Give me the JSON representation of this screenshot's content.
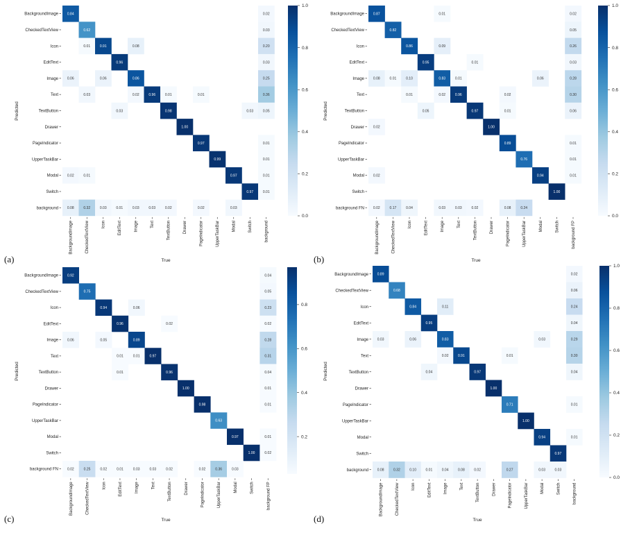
{
  "figure": {
    "colormap": [
      "#f7fbff",
      "#deebf7",
      "#c6dbef",
      "#9ecae1",
      "#6baed6",
      "#4292c6",
      "#2171b5",
      "#08519c",
      "#08306b"
    ],
    "axis_label_x": "True",
    "axis_label_y": "Predicted"
  },
  "chart_data": [
    {
      "type": "heatmap",
      "panel_label": "(a)",
      "xlabel": "True",
      "ylabel": "Predicted",
      "x_categories": [
        "BackgroundImage",
        "CheckedTextView",
        "Icon",
        "EditText",
        "Image",
        "Text",
        "TextButton",
        "Drawer",
        "PageIndicator",
        "UpperTaskBar",
        "Modal",
        "Switch",
        "background"
      ],
      "y_categories": [
        "BackgroundImage",
        "CheckedTextView",
        "Icon",
        "EditText",
        "Image",
        "Text",
        "TextButton",
        "Drawer",
        "PageIndicator",
        "UpperTaskBar",
        "Modal",
        "Switch",
        "background"
      ],
      "values": [
        [
          0.84,
          null,
          null,
          null,
          null,
          null,
          null,
          null,
          null,
          null,
          null,
          null,
          0.02
        ],
        [
          null,
          0.62,
          null,
          null,
          null,
          null,
          null,
          null,
          null,
          null,
          null,
          null,
          0.03
        ],
        [
          null,
          0.01,
          0.91,
          null,
          0.08,
          null,
          null,
          null,
          null,
          null,
          null,
          null,
          0.2
        ],
        [
          null,
          null,
          null,
          0.96,
          null,
          null,
          null,
          null,
          null,
          null,
          null,
          null,
          0.03
        ],
        [
          0.06,
          null,
          0.06,
          null,
          0.86,
          null,
          null,
          null,
          null,
          null,
          null,
          null,
          0.25
        ],
        [
          null,
          0.03,
          null,
          null,
          0.02,
          0.96,
          0.01,
          null,
          0.01,
          null,
          null,
          null,
          0.36
        ],
        [
          null,
          null,
          null,
          0.03,
          null,
          null,
          0.98,
          null,
          null,
          null,
          null,
          0.03,
          0.05
        ],
        [
          null,
          null,
          null,
          null,
          null,
          null,
          null,
          1.0,
          null,
          null,
          null,
          null,
          null
        ],
        [
          null,
          null,
          null,
          null,
          null,
          null,
          null,
          null,
          0.97,
          null,
          null,
          null,
          0.01
        ],
        [
          null,
          null,
          null,
          null,
          null,
          null,
          null,
          null,
          null,
          0.99,
          null,
          null,
          0.01
        ],
        [
          0.02,
          0.01,
          null,
          null,
          null,
          null,
          null,
          null,
          null,
          null,
          0.97,
          null,
          0.01
        ],
        [
          null,
          null,
          null,
          null,
          null,
          null,
          null,
          null,
          null,
          null,
          null,
          0.97,
          0.01
        ],
        [
          0.08,
          0.32,
          0.03,
          0.01,
          0.03,
          0.03,
          0.02,
          null,
          0.02,
          null,
          0.03,
          null,
          null
        ]
      ],
      "colorbar": {
        "range": [
          0,
          1
        ],
        "ticks": [
          "0.0",
          "0.2",
          "0.4",
          "0.6",
          "0.8",
          "1.0"
        ]
      }
    },
    {
      "type": "heatmap",
      "panel_label": "(b)",
      "xlabel": "True",
      "ylabel": "Predicted",
      "x_categories": [
        "BackgroundImage",
        "CheckedTextView",
        "Icon",
        "EditText",
        "Image",
        "Text",
        "TextButton",
        "Drawer",
        "PageIndicator",
        "UpperTaskBar",
        "Modal",
        "Switch",
        "background FP"
      ],
      "y_categories": [
        "BackgroundImage",
        "CheckedTextView",
        "Icon",
        "EditText",
        "Image",
        "Text",
        "TextButton",
        "Drawer",
        "PageIndicator",
        "UpperTaskBar",
        "Modal",
        "Switch",
        "background FN"
      ],
      "values": [
        [
          0.87,
          null,
          null,
          null,
          0.01,
          null,
          null,
          null,
          null,
          null,
          null,
          null,
          0.02
        ],
        [
          null,
          0.82,
          null,
          null,
          null,
          null,
          null,
          null,
          null,
          null,
          null,
          null,
          0.05
        ],
        [
          null,
          null,
          0.86,
          null,
          0.09,
          null,
          null,
          null,
          null,
          null,
          null,
          null,
          0.26
        ],
        [
          null,
          null,
          null,
          0.95,
          null,
          null,
          0.01,
          null,
          null,
          null,
          null,
          null,
          0.03
        ],
        [
          0.08,
          0.01,
          0.1,
          null,
          0.83,
          0.01,
          null,
          null,
          null,
          null,
          0.06,
          null,
          0.28
        ],
        [
          null,
          null,
          0.01,
          null,
          0.02,
          0.96,
          null,
          null,
          0.02,
          null,
          null,
          null,
          0.3
        ],
        [
          null,
          null,
          null,
          0.05,
          null,
          null,
          0.97,
          null,
          0.01,
          null,
          null,
          null,
          0.06
        ],
        [
          0.02,
          null,
          null,
          null,
          null,
          null,
          null,
          1.0,
          null,
          null,
          null,
          null,
          null
        ],
        [
          null,
          null,
          null,
          null,
          null,
          null,
          null,
          null,
          0.89,
          null,
          null,
          null,
          0.01
        ],
        [
          null,
          null,
          null,
          null,
          null,
          null,
          null,
          null,
          null,
          0.76,
          null,
          null,
          0.01
        ],
        [
          0.02,
          null,
          null,
          null,
          null,
          null,
          null,
          null,
          null,
          null,
          0.94,
          null,
          0.01
        ],
        [
          null,
          null,
          null,
          null,
          null,
          null,
          null,
          null,
          null,
          null,
          null,
          1.0,
          null
        ],
        [
          0.02,
          0.17,
          0.04,
          null,
          0.03,
          0.03,
          0.02,
          null,
          0.08,
          0.24,
          null,
          null,
          null
        ]
      ],
      "colorbar": {
        "range": [
          0,
          1
        ],
        "ticks": [
          "0.0",
          "0.2",
          "0.4",
          "0.6",
          "0.8",
          "1.0"
        ]
      }
    },
    {
      "type": "heatmap",
      "panel_label": "(c)",
      "xlabel": "True",
      "ylabel": "Predicted",
      "x_categories": [
        "BackgroundImage",
        "CheckedTextView",
        "Icon",
        "EditText",
        "Image",
        "Text",
        "TextButton",
        "Drawer",
        "PageIndicator",
        "UpperTaskBar",
        "Modal",
        "Switch",
        "background FP"
      ],
      "y_categories": [
        "BackgroundImage",
        "CheckedTextView",
        "Icon",
        "EditText",
        "Image",
        "Text",
        "TextButton",
        "Drawer",
        "PageIndicator",
        "UpperTaskBar",
        "Modal",
        "Switch",
        "background FN"
      ],
      "values": [
        [
          0.92,
          null,
          null,
          null,
          null,
          null,
          null,
          null,
          null,
          null,
          null,
          null,
          0.04
        ],
        [
          null,
          0.75,
          null,
          null,
          null,
          null,
          null,
          null,
          null,
          null,
          null,
          null,
          0.05
        ],
        [
          null,
          null,
          0.94,
          null,
          0.06,
          null,
          null,
          null,
          null,
          null,
          null,
          null,
          0.23
        ],
        [
          null,
          null,
          null,
          0.96,
          null,
          null,
          0.02,
          null,
          null,
          null,
          null,
          null,
          0.02
        ],
        [
          0.06,
          null,
          0.05,
          null,
          0.89,
          null,
          null,
          null,
          null,
          null,
          null,
          null,
          0.28
        ],
        [
          null,
          null,
          null,
          0.01,
          0.01,
          0.97,
          null,
          null,
          null,
          null,
          null,
          null,
          0.31
        ],
        [
          null,
          null,
          null,
          0.01,
          null,
          null,
          0.96,
          null,
          null,
          null,
          null,
          null,
          0.04
        ],
        [
          null,
          null,
          null,
          null,
          null,
          null,
          null,
          1.0,
          null,
          null,
          null,
          null,
          0.01
        ],
        [
          null,
          null,
          null,
          null,
          null,
          null,
          null,
          null,
          0.98,
          null,
          null,
          null,
          0.01
        ],
        [
          null,
          null,
          null,
          null,
          null,
          null,
          null,
          null,
          null,
          0.63,
          null,
          null,
          null
        ],
        [
          null,
          null,
          null,
          null,
          null,
          null,
          null,
          null,
          null,
          null,
          0.97,
          null,
          0.01
        ],
        [
          null,
          null,
          null,
          null,
          null,
          null,
          null,
          null,
          null,
          null,
          null,
          1.0,
          0.02
        ],
        [
          0.02,
          0.25,
          0.02,
          0.01,
          0.03,
          0.03,
          0.02,
          null,
          0.02,
          0.36,
          0.03,
          null,
          null
        ]
      ],
      "colorbar": {
        "range": [
          0.03,
          0.97
        ],
        "ticks": [
          "0.2",
          "0.4",
          "0.6",
          "0.8"
        ]
      }
    },
    {
      "type": "heatmap",
      "panel_label": "(d)",
      "xlabel": "True",
      "ylabel": "Predicted",
      "x_categories": [
        "BackgroundImage",
        "CheckedTextView",
        "Icon",
        "EditText",
        "Image",
        "Text",
        "TextButton",
        "Drawer",
        "PageIndicator",
        "UpperTaskBar",
        "Modal",
        "Switch",
        "background"
      ],
      "y_categories": [
        "BackgroundImage",
        "CheckedTextView",
        "Icon",
        "EditText",
        "Image",
        "Text",
        "TextButton",
        "Drawer",
        "PageIndicator",
        "UpperTaskBar",
        "Modal",
        "Switch",
        "background"
      ],
      "values": [
        [
          0.89,
          null,
          null,
          null,
          null,
          null,
          null,
          null,
          null,
          null,
          null,
          null,
          0.02
        ],
        [
          null,
          0.68,
          null,
          null,
          null,
          null,
          null,
          null,
          null,
          null,
          null,
          null,
          0.06
        ],
        [
          null,
          null,
          0.84,
          null,
          0.11,
          null,
          null,
          null,
          null,
          null,
          null,
          null,
          0.24
        ],
        [
          null,
          null,
          null,
          0.95,
          null,
          null,
          null,
          null,
          null,
          null,
          null,
          null,
          0.04
        ],
        [
          0.03,
          null,
          0.06,
          null,
          0.83,
          null,
          null,
          null,
          null,
          null,
          0.03,
          null,
          0.29
        ],
        [
          null,
          null,
          null,
          null,
          0.02,
          0.91,
          null,
          null,
          0.01,
          null,
          null,
          null,
          0.3
        ],
        [
          null,
          null,
          null,
          0.04,
          null,
          null,
          0.97,
          null,
          null,
          null,
          null,
          null,
          0.04
        ],
        [
          null,
          null,
          null,
          null,
          null,
          null,
          null,
          1.0,
          null,
          null,
          null,
          null,
          null
        ],
        [
          null,
          null,
          null,
          null,
          null,
          null,
          null,
          null,
          0.71,
          null,
          null,
          null,
          0.01
        ],
        [
          null,
          null,
          null,
          null,
          null,
          null,
          null,
          null,
          null,
          1.0,
          null,
          null,
          null
        ],
        [
          null,
          null,
          null,
          null,
          null,
          null,
          null,
          null,
          null,
          null,
          0.94,
          null,
          0.01
        ],
        [
          null,
          null,
          null,
          null,
          null,
          null,
          null,
          null,
          null,
          null,
          null,
          0.97,
          null
        ],
        [
          0.08,
          0.32,
          0.1,
          0.01,
          0.04,
          0.08,
          0.02,
          null,
          0.27,
          null,
          0.03,
          0.03,
          null
        ]
      ],
      "colorbar": {
        "range": [
          0,
          1
        ],
        "ticks": [
          "0.0",
          "0.2",
          "0.4",
          "0.6",
          "0.8",
          "1.0"
        ]
      }
    }
  ]
}
